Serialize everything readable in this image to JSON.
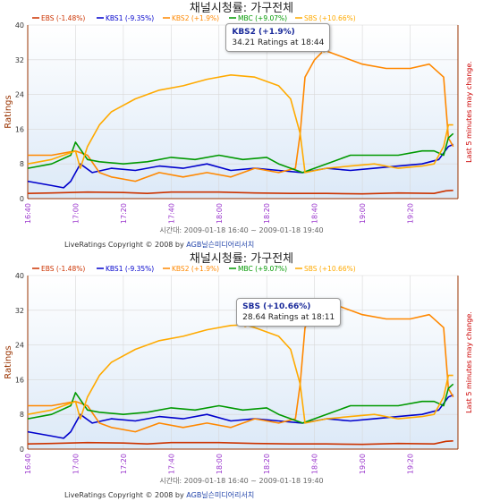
{
  "chart_data": [
    {
      "type": "line",
      "title": "채널시청률: 가구전체",
      "ylabel": "Ratings",
      "right_label": "Last 5 minutes may change.",
      "subtitle": "시간대: 2009-01-18 16:40 ~ 2009-01-18 19:40",
      "ylim": [
        0,
        40
      ],
      "yticks": [
        "0",
        "8",
        "16",
        "24",
        "32",
        "40"
      ],
      "xticks": [
        "16:40",
        "17:00",
        "17:20",
        "17:40",
        "18:00",
        "18:20",
        "18:40",
        "19:00",
        "19:20"
      ],
      "grid": true,
      "legend_position": "top",
      "copyright": "LiveRatings Copyright © 2008 by",
      "copyright_link": "AGB닐슨미디어리서치",
      "tooltip": {
        "series": "KBS2 (+1.9%)",
        "text": "34.21 Ratings at 18:44",
        "x_min": 124,
        "y": 34.21
      },
      "series": [
        {
          "name": "EBS (-1.48%)",
          "color": "#cc3300",
          "points": [
            [
              0,
              1.2
            ],
            [
              10,
              1.3
            ],
            [
              25,
              1.5
            ],
            [
              40,
              1.4
            ],
            [
              50,
              1.2
            ],
            [
              60,
              1.5
            ],
            [
              80,
              1.5
            ],
            [
              95,
              1.3
            ],
            [
              110,
              1.2
            ],
            [
              125,
              1.2
            ],
            [
              140,
              1.1
            ],
            [
              155,
              1.3
            ],
            [
              170,
              1.2
            ],
            [
              175,
              1.8
            ],
            [
              178,
              1.9
            ]
          ]
        },
        {
          "name": "KBS1 (-9.35%)",
          "color": "#0000cc",
          "points": [
            [
              0,
              4
            ],
            [
              10,
              3
            ],
            [
              15,
              2.5
            ],
            [
              18,
              4
            ],
            [
              22,
              8
            ],
            [
              27,
              6
            ],
            [
              35,
              7
            ],
            [
              45,
              6.5
            ],
            [
              55,
              7.5
            ],
            [
              65,
              7
            ],
            [
              75,
              8
            ],
            [
              85,
              6.5
            ],
            [
              95,
              7
            ],
            [
              105,
              6.5
            ],
            [
              115,
              6
            ],
            [
              125,
              7
            ],
            [
              135,
              6.5
            ],
            [
              145,
              7
            ],
            [
              155,
              7.5
            ],
            [
              165,
              8
            ],
            [
              172,
              9
            ],
            [
              176,
              12
            ],
            [
              178,
              12.5
            ]
          ]
        },
        {
          "name": "KBS2 (+1.9%)",
          "color": "#ff8800",
          "points": [
            [
              0,
              10
            ],
            [
              10,
              10
            ],
            [
              20,
              11
            ],
            [
              25,
              10
            ],
            [
              30,
              6
            ],
            [
              35,
              5
            ],
            [
              45,
              4
            ],
            [
              55,
              6
            ],
            [
              65,
              5
            ],
            [
              75,
              6
            ],
            [
              85,
              5
            ],
            [
              95,
              7
            ],
            [
              105,
              6
            ],
            [
              112,
              7
            ],
            [
              114,
              15
            ],
            [
              116,
              28
            ],
            [
              120,
              32
            ],
            [
              124,
              34.2
            ],
            [
              130,
              33
            ],
            [
              140,
              31
            ],
            [
              150,
              30
            ],
            [
              160,
              30
            ],
            [
              168,
              31
            ],
            [
              172,
              29
            ],
            [
              174,
              28
            ],
            [
              176,
              14
            ],
            [
              178,
              12
            ]
          ]
        },
        {
          "name": "MBC (+9.07%)",
          "color": "#009900",
          "points": [
            [
              0,
              7
            ],
            [
              10,
              8
            ],
            [
              18,
              10
            ],
            [
              20,
              13
            ],
            [
              25,
              9
            ],
            [
              30,
              8.5
            ],
            [
              40,
              8
            ],
            [
              50,
              8.5
            ],
            [
              60,
              9.5
            ],
            [
              70,
              9
            ],
            [
              80,
              10
            ],
            [
              90,
              9
            ],
            [
              100,
              9.5
            ],
            [
              105,
              8
            ],
            [
              115,
              6
            ],
            [
              125,
              8
            ],
            [
              135,
              10
            ],
            [
              145,
              10
            ],
            [
              155,
              10
            ],
            [
              165,
              11
            ],
            [
              170,
              11
            ],
            [
              174,
              10
            ],
            [
              176,
              14
            ],
            [
              178,
              15
            ]
          ]
        },
        {
          "name": "SBS (+10.66%)",
          "color": "#ffaa00",
          "points": [
            [
              0,
              8
            ],
            [
              10,
              9
            ],
            [
              20,
              11
            ],
            [
              22,
              7
            ],
            [
              25,
              12
            ],
            [
              30,
              17
            ],
            [
              35,
              20
            ],
            [
              45,
              23
            ],
            [
              55,
              25
            ],
            [
              65,
              26
            ],
            [
              75,
              27.5
            ],
            [
              85,
              28.5
            ],
            [
              95,
              28
            ],
            [
              105,
              26
            ],
            [
              110,
              23
            ],
            [
              114,
              15
            ],
            [
              116,
              6
            ],
            [
              125,
              7
            ],
            [
              135,
              7.5
            ],
            [
              145,
              8
            ],
            [
              155,
              7
            ],
            [
              165,
              7.5
            ],
            [
              170,
              8
            ],
            [
              174,
              12
            ],
            [
              176,
              17
            ],
            [
              178,
              17
            ]
          ]
        }
      ]
    },
    {
      "type": "line",
      "title": "채널시청률: 가구전체",
      "ylabel": "Ratings",
      "right_label": "Last 5 minutes may change.",
      "subtitle": "시간대: 2009-01-18 16:40 ~ 2009-01-18 19:40",
      "ylim": [
        0,
        40
      ],
      "yticks": [
        "0",
        "8",
        "16",
        "24",
        "32",
        "40"
      ],
      "xticks": [
        "16:40",
        "17:00",
        "17:20",
        "17:40",
        "18:00",
        "18:20",
        "18:40",
        "19:00",
        "19:20"
      ],
      "grid": true,
      "legend_position": "top",
      "copyright": "LiveRatings Copyright © 2008 by",
      "copyright_link": "AGB닐슨미디어리서치",
      "tooltip": {
        "series": "SBS (+10.66%)",
        "text": "28.64 Ratings at 18:11",
        "x_min": 91,
        "y": 28.64
      },
      "series": [
        {
          "name": "EBS (-1.48%)",
          "color": "#cc3300",
          "points": [
            [
              0,
              1.2
            ],
            [
              10,
              1.3
            ],
            [
              25,
              1.5
            ],
            [
              40,
              1.4
            ],
            [
              50,
              1.2
            ],
            [
              60,
              1.5
            ],
            [
              80,
              1.5
            ],
            [
              95,
              1.3
            ],
            [
              110,
              1.2
            ],
            [
              125,
              1.2
            ],
            [
              140,
              1.1
            ],
            [
              155,
              1.3
            ],
            [
              170,
              1.2
            ],
            [
              175,
              1.8
            ],
            [
              178,
              1.9
            ]
          ]
        },
        {
          "name": "KBS1 (-9.35%)",
          "color": "#0000cc",
          "points": [
            [
              0,
              4
            ],
            [
              10,
              3
            ],
            [
              15,
              2.5
            ],
            [
              18,
              4
            ],
            [
              22,
              8
            ],
            [
              27,
              6
            ],
            [
              35,
              7
            ],
            [
              45,
              6.5
            ],
            [
              55,
              7.5
            ],
            [
              65,
              7
            ],
            [
              75,
              8
            ],
            [
              85,
              6.5
            ],
            [
              95,
              7
            ],
            [
              105,
              6.5
            ],
            [
              115,
              6
            ],
            [
              125,
              7
            ],
            [
              135,
              6.5
            ],
            [
              145,
              7
            ],
            [
              155,
              7.5
            ],
            [
              165,
              8
            ],
            [
              172,
              9
            ],
            [
              176,
              12
            ],
            [
              178,
              12.5
            ]
          ]
        },
        {
          "name": "KBS2 (+1.9%)",
          "color": "#ff8800",
          "points": [
            [
              0,
              10
            ],
            [
              10,
              10
            ],
            [
              20,
              11
            ],
            [
              25,
              10
            ],
            [
              30,
              6
            ],
            [
              35,
              5
            ],
            [
              45,
              4
            ],
            [
              55,
              6
            ],
            [
              65,
              5
            ],
            [
              75,
              6
            ],
            [
              85,
              5
            ],
            [
              95,
              7
            ],
            [
              105,
              6
            ],
            [
              112,
              7
            ],
            [
              114,
              15
            ],
            [
              116,
              28
            ],
            [
              120,
              32
            ],
            [
              124,
              34.2
            ],
            [
              130,
              33
            ],
            [
              140,
              31
            ],
            [
              150,
              30
            ],
            [
              160,
              30
            ],
            [
              168,
              31
            ],
            [
              172,
              29
            ],
            [
              174,
              28
            ],
            [
              176,
              14
            ],
            [
              178,
              12
            ]
          ]
        },
        {
          "name": "MBC (+9.07%)",
          "color": "#009900",
          "points": [
            [
              0,
              7
            ],
            [
              10,
              8
            ],
            [
              18,
              10
            ],
            [
              20,
              13
            ],
            [
              25,
              9
            ],
            [
              30,
              8.5
            ],
            [
              40,
              8
            ],
            [
              50,
              8.5
            ],
            [
              60,
              9.5
            ],
            [
              70,
              9
            ],
            [
              80,
              10
            ],
            [
              90,
              9
            ],
            [
              100,
              9.5
            ],
            [
              105,
              8
            ],
            [
              115,
              6
            ],
            [
              125,
              8
            ],
            [
              135,
              10
            ],
            [
              145,
              10
            ],
            [
              155,
              10
            ],
            [
              165,
              11
            ],
            [
              170,
              11
            ],
            [
              174,
              10
            ],
            [
              176,
              14
            ],
            [
              178,
              15
            ]
          ]
        },
        {
          "name": "SBS (+10.66%)",
          "color": "#ffaa00",
          "points": [
            [
              0,
              8
            ],
            [
              10,
              9
            ],
            [
              20,
              11
            ],
            [
              22,
              7
            ],
            [
              25,
              12
            ],
            [
              30,
              17
            ],
            [
              35,
              20
            ],
            [
              45,
              23
            ],
            [
              55,
              25
            ],
            [
              65,
              26
            ],
            [
              75,
              27.5
            ],
            [
              85,
              28.5
            ],
            [
              91,
              28.64
            ],
            [
              95,
              28
            ],
            [
              105,
              26
            ],
            [
              110,
              23
            ],
            [
              114,
              15
            ],
            [
              116,
              6
            ],
            [
              125,
              7
            ],
            [
              135,
              7.5
            ],
            [
              145,
              8
            ],
            [
              155,
              7
            ],
            [
              165,
              7.5
            ],
            [
              170,
              8
            ],
            [
              174,
              12
            ],
            [
              176,
              17
            ],
            [
              178,
              17
            ]
          ]
        }
      ]
    }
  ]
}
